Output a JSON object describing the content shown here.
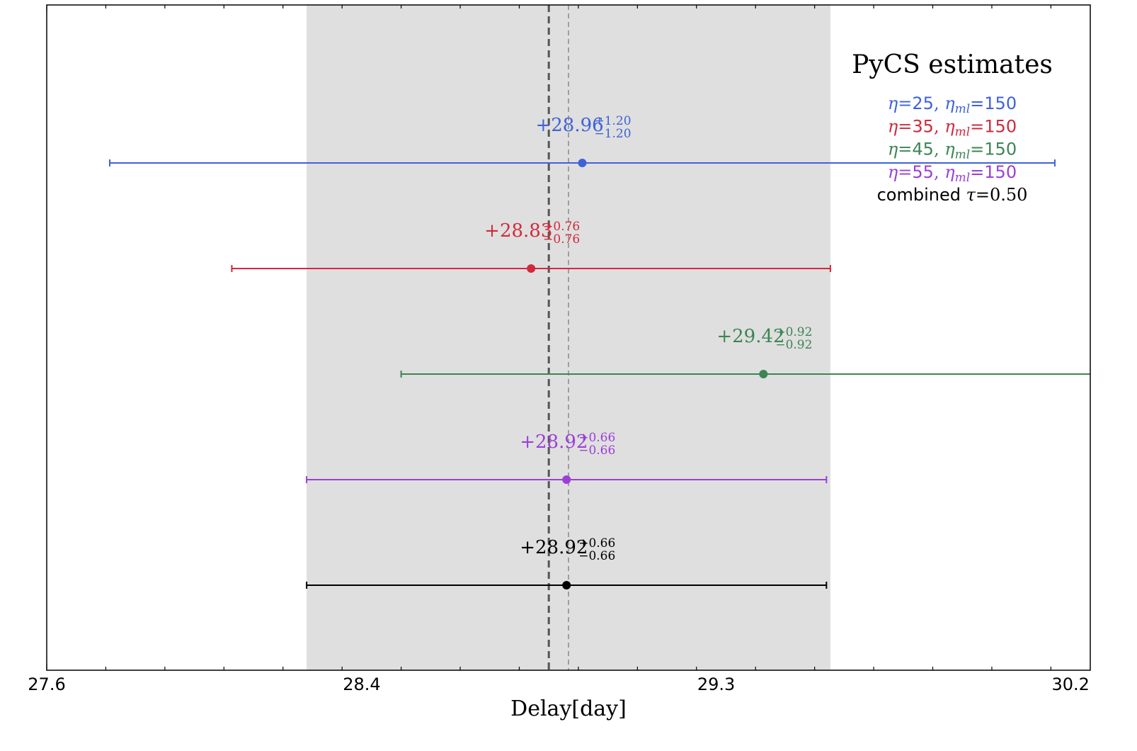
{
  "chart_data": {
    "type": "scatter",
    "xlabel": "Delay[day]",
    "xlim": [
      27.6,
      30.25
    ],
    "x_ticks": [
      "27.6",
      "28.4",
      "29.3",
      "30.2"
    ],
    "x_tick_values": [
      27.6,
      28.4,
      29.3,
      30.2
    ],
    "grid": false,
    "shaded_band": [
      28.26,
      29.59
    ],
    "reference_lines": [
      {
        "x": 28.875,
        "style": "dashed-thick",
        "color": "#555555"
      },
      {
        "x": 28.925,
        "style": "dashed-thin",
        "color": "#888888"
      }
    ],
    "legend": {
      "title": "PyCS estimates",
      "placement": "top-right",
      "entries": [
        {
          "label": "η=25, η_ml=150",
          "eta": "25",
          "eta_ml": "150",
          "color": "#3f62d8"
        },
        {
          "label": "η=35, η_ml=150",
          "eta": "35",
          "eta_ml": "150",
          "color": "#d02a3c"
        },
        {
          "label": "η=45, η_ml=150",
          "eta": "45",
          "eta_ml": "150",
          "color": "#3c8555"
        },
        {
          "label": "η=55, η_ml=150",
          "eta": "55",
          "eta_ml": "150",
          "color": "#9b3fd8"
        },
        {
          "label": "combined τ=0.50",
          "tau": "0.50",
          "color": "#000000"
        }
      ]
    },
    "series": [
      {
        "value": 28.96,
        "plus": 1.2,
        "minus": 1.2,
        "text": "+28.96",
        "sup": "+1.20",
        "sub": "−1.20",
        "color": "#3f62d8"
      },
      {
        "value": 28.83,
        "plus": 0.76,
        "minus": 0.76,
        "text": "+28.83",
        "sup": "+0.76",
        "sub": "−0.76",
        "color": "#d02a3c"
      },
      {
        "value": 29.42,
        "plus": 0.92,
        "minus": 0.92,
        "text": "+29.42",
        "sup": "+0.92",
        "sub": "−0.92",
        "color": "#3c8555"
      },
      {
        "value": 28.92,
        "plus": 0.66,
        "minus": 0.66,
        "text": "+28.92",
        "sup": "+0.66",
        "sub": "−0.66",
        "color": "#9b3fd8"
      },
      {
        "value": 28.92,
        "plus": 0.66,
        "minus": 0.66,
        "text": "+28.92",
        "sup": "+0.66",
        "sub": "−0.66",
        "color": "#000000"
      }
    ]
  }
}
